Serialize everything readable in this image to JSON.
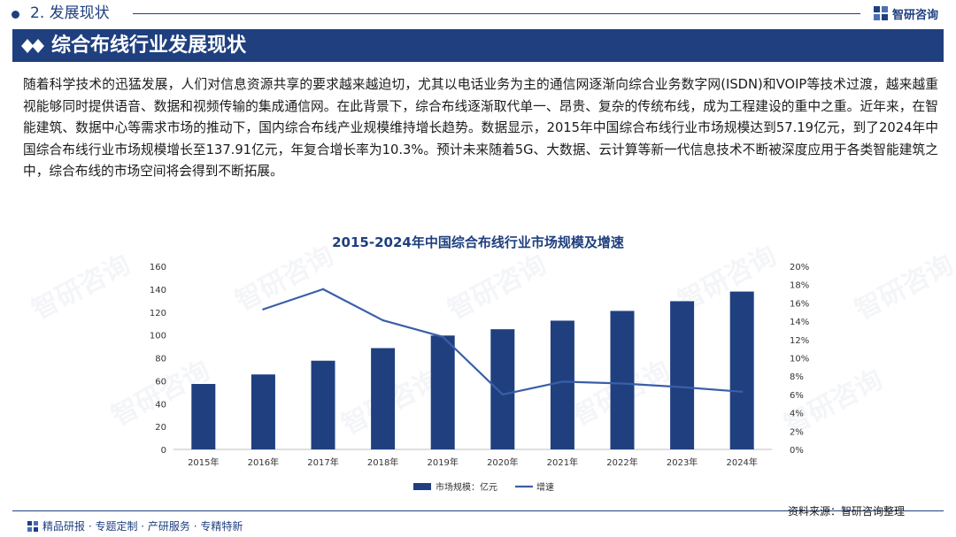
{
  "header": {
    "section": "2. 发展现状",
    "brand": "智研咨询",
    "title": "综合布线行业发展现状"
  },
  "intro_text": "随着科学技术的迅猛发展，人们对信息资源共享的要求越来越迫切，尤其以电话业务为主的通信网逐渐向综合业务数字网(ISDN)和VOIP等技术过渡，越来越重视能够同时提供语音、数据和视频传输的集成通信网。在此背景下，综合布线逐渐取代单一、昂贵、复杂的传统布线，成为工程建设的重中之重。近年来，在智能建筑、数据中心等需求市场的推动下，国内综合布线产业规模维持增长趋势。数据显示，2015年中国综合布线行业市场规模达到57.19亿元，到了2024年中国综合布线行业市场规模增长至137.91亿元，年复合增长率为10.3%。预计未来随着5G、大数据、云计算等新一代信息技术不断被深度应用于各类智能建筑之中，综合布线的市场空间将会得到不断拓展。",
  "watermark_text": "智研咨询",
  "chart_data": {
    "type": "bar",
    "title": "2015-2024年中国综合布线行业市场规模及增速",
    "categories": [
      "2015年",
      "2016年",
      "2017年",
      "2018年",
      "2019年",
      "2020年",
      "2021年",
      "2022年",
      "2023年",
      "2024年"
    ],
    "series": [
      {
        "name": "市场规模：亿元",
        "type": "bar",
        "axis": "left",
        "color": "#1f3f7f",
        "values": [
          57.19,
          65.5,
          77.5,
          88.5,
          99.5,
          105,
          112.5,
          121,
          129.5,
          137.91
        ]
      },
      {
        "name": "增速",
        "type": "line",
        "axis": "right",
        "color": "#3a5fa8",
        "values": [
          null,
          15.3,
          17.5,
          14.1,
          12.3,
          6.0,
          7.4,
          7.2,
          6.8,
          6.3
        ]
      }
    ],
    "y_left": {
      "min": 0,
      "max": 160,
      "step": 20,
      "ticks": [
        "0",
        "20",
        "40",
        "60",
        "80",
        "100",
        "120",
        "140",
        "160"
      ]
    },
    "y_right": {
      "min": 0,
      "max": 20,
      "step": 2,
      "ticks": [
        "0%",
        "2%",
        "4%",
        "6%",
        "8%",
        "10%",
        "12%",
        "14%",
        "16%",
        "18%",
        "20%"
      ]
    },
    "grid": false,
    "legend_position": "bottom"
  },
  "footer": {
    "tagline": "精品研报 · 专题定制 · 产研服务 · 专精特新",
    "source": "资料来源：智研咨询整理"
  }
}
